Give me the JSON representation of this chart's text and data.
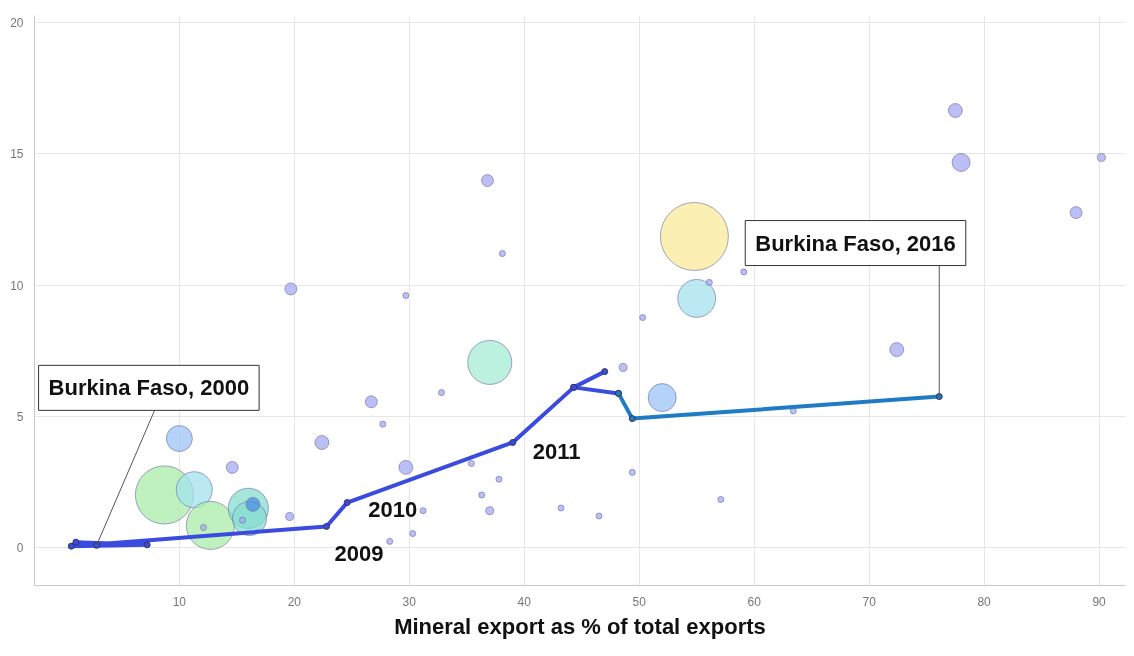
{
  "chart_data": {
    "type": "bubble",
    "xlabel": "Mineral export as % of total exports",
    "xlim": [
      -2.6,
      92.3
    ],
    "xticks": [
      10,
      20,
      30,
      40,
      50,
      60,
      70,
      80,
      90
    ],
    "ylim": [
      -1.45,
      20.27
    ],
    "yticks": [
      0,
      5,
      10,
      15,
      20
    ],
    "grid": true,
    "series": [
      {
        "x": [
          10.0,
          8.7,
          11.3,
          12.7,
          16.0,
          16.1,
          16.4,
          14.6,
          19.6,
          12.1,
          15.5,
          22.4,
          19.7,
          29.7,
          26.7,
          27.7,
          29.7,
          32.8,
          36.8,
          38.1,
          37.0,
          30.3,
          31.2,
          28.3,
          36.3,
          37.0,
          37.8,
          35.4,
          43.2,
          46.5,
          48.6,
          52.0,
          50.3,
          49.4,
          77.5,
          78.0,
          90.2,
          88.0,
          54.8,
          55.0,
          56.1,
          59.1,
          72.4,
          63.4,
          57.1
        ],
        "values": [
          4.15,
          2.0,
          2.2,
          0.84,
          1.49,
          1.1,
          1.64,
          3.05,
          1.18,
          0.76,
          1.04,
          4.0,
          9.85,
          3.05,
          5.55,
          4.7,
          9.6,
          5.9,
          13.98,
          11.2,
          7.05,
          0.53,
          1.4,
          0.23,
          2.0,
          1.4,
          2.6,
          3.2,
          1.5,
          1.2,
          6.86,
          5.71,
          8.76,
          2.86,
          16.65,
          14.67,
          14.86,
          12.76,
          11.85,
          9.49,
          10.1,
          10.5,
          7.54,
          5.2,
          1.83
        ],
        "sizes": [
          0.146,
          0.73,
          0.28,
          0.5,
          0.35,
          0.25,
          0.042,
          0.031,
          0.014,
          0.008,
          0.008,
          0.042,
          0.031,
          0.042,
          0.031,
          0.008,
          0.008,
          0.008,
          0.031,
          0.008,
          0.42,
          0.008,
          0.008,
          0.008,
          0.008,
          0.014,
          0.008,
          0.008,
          0.008,
          0.008,
          0.014,
          0.17,
          0.008,
          0.008,
          0.042,
          0.07,
          0.014,
          0.031,
          1,
          0.31,
          0.008,
          0.008,
          0.042,
          0.008,
          0.008
        ],
        "colors": [
          "#9cc3f5",
          "#a8eca8",
          "#a3e2ee",
          "#a8eca8",
          "#86dcd0",
          "#86dcd0",
          "#4f8fe0",
          "#a4aaf2",
          "#a4aaf2",
          "#a4aaf2",
          "#a4aaf2",
          "#a4aaf2",
          "#a4aaf2",
          "#a4aaf2",
          "#a4aaf2",
          "#a4aaf2",
          "#a4aaf2",
          "#a4aaf2",
          "#a4aaf2",
          "#a4aaf2",
          "#a6ecd6",
          "#a4aaf2",
          "#a4aaf2",
          "#a4aaf2",
          "#a4aaf2",
          "#a4aaf2",
          "#a4aaf2",
          "#a4aaf2",
          "#a4aaf2",
          "#a4aaf2",
          "#a4aaf2",
          "#9cc3f5",
          "#a4aaf2",
          "#a4aaf2",
          "#a4aaf2",
          "#a4aaf2",
          "#a4aaf2",
          "#a4aaf2",
          "#fbe99a",
          "#a3e2ee",
          "#a4aaf2",
          "#a4aaf2",
          "#a4aaf2",
          "#a4aaf2",
          "#a4aaf2"
        ]
      },
      {
        "type": "line",
        "x": [
          2.8,
          1.0,
          7.2,
          0.6,
          22.8,
          24.6,
          39.0,
          44.3,
          47.0,
          44.3,
          48.2
        ],
        "values": [
          0.08,
          0.2,
          0.1,
          0.05,
          0.8,
          1.71,
          4.0,
          6.1,
          6.7,
          6.1,
          5.87
        ],
        "color": "#3a4be0",
        "marker": "circle"
      },
      {
        "type": "line",
        "x": [
          48.2,
          49.4,
          76.1
        ],
        "values": [
          5.87,
          4.91,
          5.75
        ],
        "color": "#1f7bc4",
        "marker": "circle"
      }
    ],
    "annotations": [
      {
        "text": "Burkina Faso, 2000",
        "x": 2.8,
        "y": 0.08
      },
      {
        "text": "Burkina Faso, 2016",
        "x": 76.1,
        "y": 5.75
      },
      {
        "text": "2009",
        "x": 22.8,
        "y": 0.8
      },
      {
        "text": "2010",
        "x": 24.6,
        "y": 1.71
      },
      {
        "text": "2011",
        "x": 39.0,
        "y": 4.0
      }
    ]
  }
}
